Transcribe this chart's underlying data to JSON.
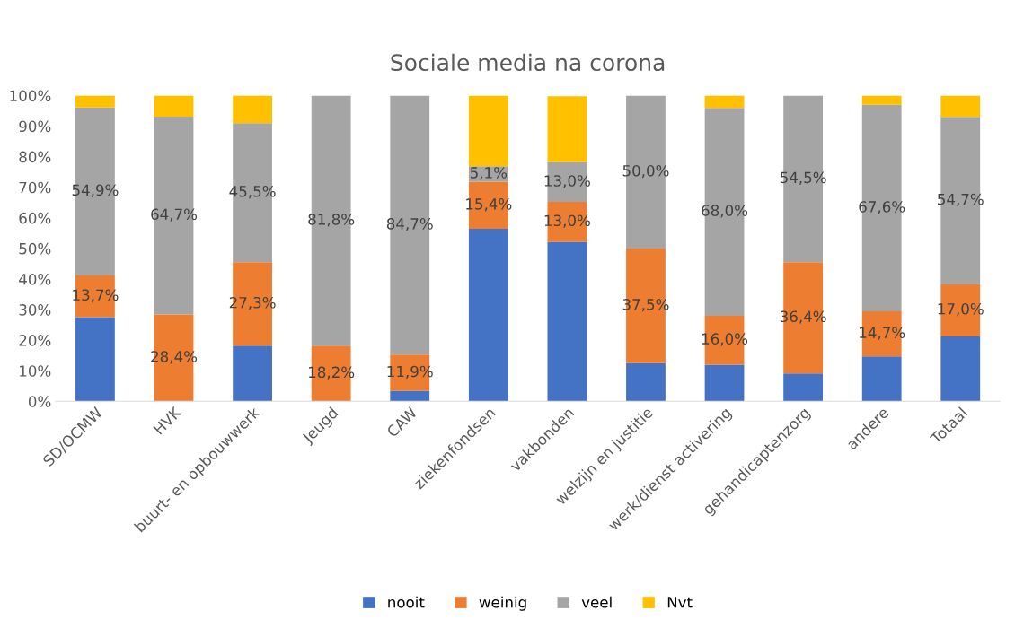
{
  "chart_data": {
    "type": "bar",
    "title": "Sociale media na corona",
    "stacked": true,
    "categories": [
      "SD/OCMW",
      "HVK",
      "buurt- en opbouwwerk",
      "Jeugd",
      "CAW",
      "ziekenfondsen",
      "vakbonden",
      "welzijn en justitie",
      "werk/dienst activering",
      "gehandicaptenzorg",
      "andere",
      "Totaal"
    ],
    "series": [
      {
        "name": "nooit",
        "color": "#4472c4",
        "values": [
          27.5,
          0,
          18.2,
          0,
          3.4,
          56.4,
          52.2,
          12.5,
          12.0,
          9.1,
          14.7,
          21.3
        ]
      },
      {
        "name": "weinig",
        "color": "#ed7d31",
        "values": [
          13.7,
          28.4,
          27.3,
          18.2,
          11.9,
          15.4,
          13.0,
          37.5,
          16.0,
          36.4,
          14.7,
          17.0
        ],
        "value_labels": [
          "13,7%",
          "28,4%",
          "27,3%",
          "18,2%",
          "11,9%",
          "15,4%",
          "13,0%",
          "37,5%",
          "16,0%",
          "36,4%",
          "14,7%",
          "17,0%"
        ]
      },
      {
        "name": "veel",
        "color": "#a5a5a5",
        "values": [
          54.9,
          64.7,
          45.5,
          81.8,
          84.7,
          5.1,
          13.0,
          50.0,
          68.0,
          54.5,
          67.6,
          54.7
        ],
        "value_labels": [
          "54,9%",
          "64,7%",
          "45,5%",
          "81,8%",
          "84,7%",
          "5,1%",
          "13,0%",
          "50,0%",
          "68,0%",
          "54,5%",
          "67,6%",
          "54,7%"
        ]
      },
      {
        "name": "Nvt",
        "color": "#ffc000",
        "values": [
          3.9,
          6.9,
          9.0,
          0,
          0,
          23.1,
          21.6,
          0,
          4.0,
          0,
          3.0,
          7.0
        ]
      }
    ],
    "ylim": [
      0,
      100
    ],
    "yticks": [
      {
        "value": 0,
        "label": "0%"
      },
      {
        "value": 10,
        "label": "10%"
      },
      {
        "value": 20,
        "label": "20%"
      },
      {
        "value": 30,
        "label": "30%"
      },
      {
        "value": 40,
        "label": "40%"
      },
      {
        "value": 50,
        "label": "50%"
      },
      {
        "value": 60,
        "label": "60%"
      },
      {
        "value": 70,
        "label": "70%"
      },
      {
        "value": 80,
        "label": "80%"
      },
      {
        "value": 90,
        "label": "90%"
      },
      {
        "value": 100,
        "label": "100%"
      }
    ],
    "grid": false,
    "legend": "bottom"
  }
}
